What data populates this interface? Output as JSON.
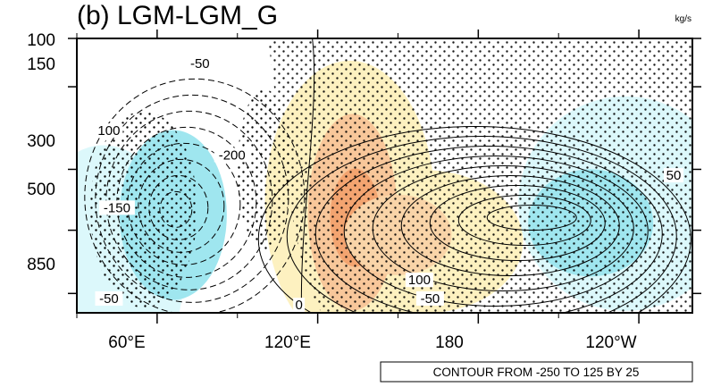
{
  "chart_data": {
    "type": "contour",
    "title": "(b) LGM-LGM_G",
    "unit": "kg/s",
    "info_label": "CONTOUR FROM -250 TO 125 BY 25",
    "x_ticks": [
      "60°E",
      "120°E",
      "180",
      "120°W"
    ],
    "y_ticks": [
      "100",
      "150",
      "300",
      "500",
      "850"
    ],
    "y_axis": {
      "scale": "log",
      "units": "hPa",
      "range": [
        100,
        1000
      ]
    },
    "x_axis": {
      "units": "longitude",
      "range_deg_east": [
        30,
        260
      ]
    },
    "contour_min": -250,
    "contour_max": 125,
    "contour_interval": 25,
    "contour_labels": [
      {
        "text": "-50",
        "lon": 76,
        "p": 125
      },
      {
        "text": "100",
        "lon": 42,
        "p": 220
      },
      {
        "text": "-200",
        "lon": 88,
        "p": 270
      },
      {
        "text": "-150",
        "lon": 45,
        "p": 420
      },
      {
        "text": "-50",
        "lon": 42,
        "p": 900
      },
      {
        "text": "0",
        "lon": 113,
        "p": 950
      },
      {
        "text": "100",
        "lon": 158,
        "p": 770
      },
      {
        "text": "-50",
        "lon": 162,
        "p": 900
      },
      {
        "text": "50",
        "lon": 253,
        "p": 320
      }
    ],
    "negative_cell": {
      "center_lon": 67,
      "center_p": 420,
      "min": -200
    },
    "positive_cell": {
      "center_lon": 200,
      "center_p": 450,
      "max": 125
    },
    "stippling": "significant regions dotted",
    "shading_colors": {
      "positive": "#f3a470",
      "weak_positive": "#fdf1c0",
      "negative": "#9fe6ef",
      "weak_negative": "#dcf8fb"
    }
  }
}
